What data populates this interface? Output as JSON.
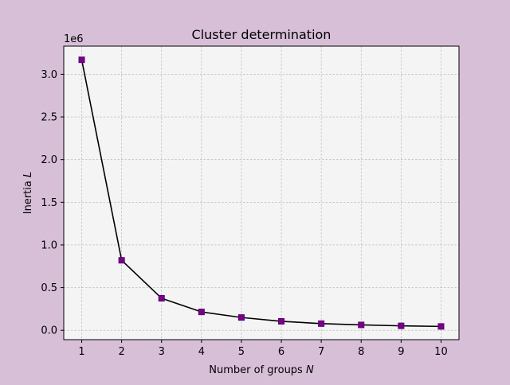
{
  "colors": {
    "figure_background": "#d8bfd8",
    "axes_background": "#f4f4f4",
    "line": "#000000",
    "marker_fill": "#800080",
    "marker_edge": "#4b0082",
    "grid": "#b0b0b0"
  },
  "chart_data": {
    "type": "line",
    "title": "Cluster determination",
    "xlabel": "Number of groups N",
    "ylabel": "Inertia L",
    "y_offset_label": "1e6",
    "x": [
      1,
      2,
      3,
      4,
      5,
      6,
      7,
      8,
      9,
      10
    ],
    "series": [
      {
        "values": [
          3170000,
          820000,
          375000,
          215000,
          150000,
          105000,
          78000,
          63000,
          52000,
          45000
        ],
        "marker": "square"
      }
    ],
    "xlim": [
      0.55,
      10.45
    ],
    "ylim": [
      -110000,
      3330000
    ],
    "x_ticks": [
      1,
      2,
      3,
      4,
      5,
      6,
      7,
      8,
      9,
      10
    ],
    "x_tick_labels": [
      "1",
      "2",
      "3",
      "4",
      "5",
      "6",
      "7",
      "8",
      "9",
      "10"
    ],
    "y_ticks": [
      0,
      500000,
      1000000,
      1500000,
      2000000,
      2500000,
      3000000
    ],
    "y_tick_labels": [
      "0.0",
      "0.5",
      "1.0",
      "1.5",
      "2.0",
      "2.5",
      "3.0"
    ],
    "grid": true,
    "legend": false
  }
}
